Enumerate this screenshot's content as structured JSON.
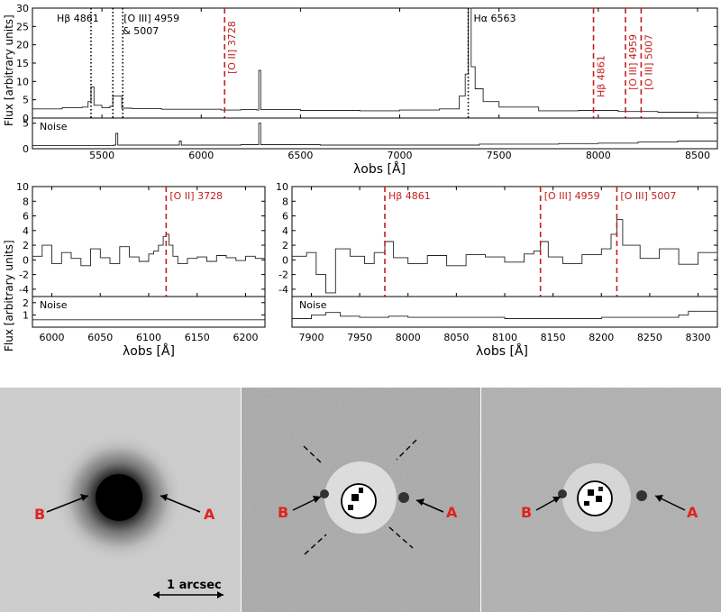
{
  "chart_data": [
    {
      "type": "line",
      "panel": "top-spectrum",
      "ylabel": "Flux [arbitrary units]",
      "xlabel": "λobs [Å]",
      "xlim": [
        5150,
        8600
      ],
      "ylim": [
        0,
        30
      ],
      "xticks": [
        5500,
        6000,
        6500,
        7000,
        7500,
        8000,
        8500
      ],
      "yticks": [
        0,
        5,
        10,
        15,
        20,
        25,
        30
      ],
      "series": [
        {
          "x": [
            5150,
            5300,
            5400,
            5430,
            5445,
            5460,
            5500,
            5540,
            5555,
            5600,
            5650,
            5800,
            6000,
            6100,
            6200,
            6280,
            6290,
            6300,
            6500,
            6800,
            7000,
            7200,
            7300,
            7330,
            7345,
            7360,
            7380,
            7420,
            7500,
            7700,
            7900,
            8100,
            8300,
            8500,
            8600
          ],
          "values": [
            2.5,
            2.8,
            3,
            4.5,
            8.5,
            3.5,
            2.8,
            3.2,
            6,
            2.7,
            2.6,
            2.4,
            2.4,
            2.2,
            2.3,
            2.2,
            13,
            2.3,
            2.1,
            2,
            2.2,
            2.5,
            6,
            12,
            30,
            14,
            8,
            4.5,
            3,
            2,
            2.1,
            1.8,
            1.6,
            1.5,
            1.6
          ]
        }
      ],
      "annotations": [
        {
          "label": "Hβ 4861",
          "x": 5445,
          "style": "dotted",
          "color": "#000000"
        },
        {
          "label": "[O III] 4959",
          "x": 5555,
          "style": "dotted",
          "color": "#000000"
        },
        {
          "label": "& 5007",
          "x": 5605,
          "style": "dotted",
          "color": "#000000"
        },
        {
          "label": "Hα 6563",
          "x": 7345,
          "style": "dotted",
          "color": "#000000"
        },
        {
          "label": "[O II] 3728",
          "x": 6118,
          "style": "dashed",
          "color": "#c0201f"
        },
        {
          "label": "Hβ 4861",
          "x": 7976,
          "style": "dashed",
          "color": "#c0201f"
        },
        {
          "label": "[O III] 4959",
          "x": 8137,
          "style": "dashed",
          "color": "#c0201f"
        },
        {
          "label": "[O III] 5007",
          "x": 8216,
          "style": "dashed",
          "color": "#c0201f"
        }
      ]
    },
    {
      "type": "line",
      "panel": "top-noise",
      "label": "Noise",
      "xlim": [
        5150,
        8600
      ],
      "ylim": [
        0,
        6
      ],
      "yticks": [
        0,
        5
      ],
      "series": [
        {
          "x": [
            5150,
            5500,
            5560,
            5570,
            5580,
            5800,
            5880,
            5890,
            5900,
            6200,
            6280,
            6290,
            6300,
            6600,
            7000,
            7400,
            7800,
            8000,
            8200,
            8400,
            8600
          ],
          "values": [
            0.6,
            0.6,
            0.7,
            3,
            0.7,
            0.7,
            0.7,
            1.5,
            0.7,
            0.8,
            0.8,
            5,
            0.8,
            0.7,
            0.7,
            0.9,
            1,
            1.1,
            1.3,
            1.5,
            1.8
          ]
        }
      ]
    },
    {
      "type": "line",
      "panel": "zoom-left",
      "ylabel": "Flux [arbitrary units]",
      "xlabel": "λobs [Å]",
      "xlim": [
        5980,
        6220
      ],
      "ylim": [
        -5,
        10
      ],
      "xticks": [
        6000,
        6050,
        6100,
        6150,
        6200
      ],
      "yticks": [
        -4,
        -2,
        0,
        2,
        4,
        6,
        8,
        10
      ],
      "series": [
        {
          "x": [
            5980,
            5990,
            6000,
            6010,
            6020,
            6030,
            6040,
            6050,
            6060,
            6070,
            6080,
            6090,
            6100,
            6105,
            6110,
            6115,
            6118,
            6121,
            6125,
            6130,
            6140,
            6150,
            6160,
            6170,
            6180,
            6190,
            6200,
            6210,
            6220
          ],
          "values": [
            0.5,
            2,
            -0.5,
            1,
            0.2,
            -0.8,
            1.5,
            0.3,
            -0.5,
            1.8,
            0.4,
            -0.2,
            0.8,
            1.2,
            2,
            3.2,
            3.5,
            2,
            0.5,
            -0.5,
            0.2,
            0.4,
            -0.2,
            0.6,
            0.3,
            -0.1,
            0.5,
            0.2,
            0.4
          ]
        }
      ],
      "annotations": [
        {
          "label": "[O II] 3728",
          "x": 6118,
          "style": "dashed",
          "color": "#c0201f"
        }
      ]
    },
    {
      "type": "line",
      "panel": "zoom-left-noise",
      "label": "Noise",
      "xlim": [
        5980,
        6220
      ],
      "ylim": [
        0,
        2.5
      ],
      "yticks": [
        1,
        2
      ],
      "series": [
        {
          "x": [
            5980,
            6220
          ],
          "values": [
            0.6,
            0.6
          ]
        }
      ]
    },
    {
      "type": "line",
      "panel": "zoom-right",
      "xlabel": "λobs [Å]",
      "xlim": [
        7880,
        8320
      ],
      "ylim": [
        -5,
        10
      ],
      "xticks": [
        7900,
        7950,
        8000,
        8050,
        8100,
        8150,
        8200,
        8250,
        8300
      ],
      "yticks": [
        -4,
        -2,
        0,
        2,
        4,
        6,
        8,
        10
      ],
      "series": [
        {
          "x": [
            7880,
            7895,
            7905,
            7915,
            7925,
            7940,
            7955,
            7965,
            7976,
            7985,
            8000,
            8020,
            8040,
            8060,
            8080,
            8100,
            8120,
            8130,
            8137,
            8145,
            8160,
            8180,
            8200,
            8210,
            8216,
            8222,
            8240,
            8260,
            8280,
            8300,
            8320
          ],
          "values": [
            0.5,
            1,
            -2,
            -4.5,
            1.5,
            0.5,
            -0.5,
            1,
            2.5,
            0.3,
            -0.5,
            0.6,
            -0.8,
            0.7,
            0.4,
            -0.3,
            0.8,
            1.2,
            2.5,
            0.4,
            -0.5,
            0.7,
            1.5,
            3.5,
            5.5,
            2,
            0.2,
            1.5,
            -0.6,
            1,
            0.5
          ]
        }
      ],
      "annotations": [
        {
          "label": "Hβ 4861",
          "x": 7976,
          "style": "dashed",
          "color": "#c0201f"
        },
        {
          "label": "[O III] 4959",
          "x": 8137,
          "style": "dashed",
          "color": "#c0201f"
        },
        {
          "label": "[O III] 5007",
          "x": 8216,
          "style": "dashed",
          "color": "#c0201f"
        }
      ]
    },
    {
      "type": "line",
      "panel": "zoom-right-noise",
      "label": "Noise",
      "xlim": [
        7880,
        8320
      ],
      "ylim": [
        0,
        2.5
      ],
      "series": [
        {
          "x": [
            7880,
            7900,
            7915,
            7930,
            7950,
            7980,
            8000,
            8050,
            8100,
            8150,
            8200,
            8260,
            8280,
            8290,
            8320
          ],
          "values": [
            0.7,
            1,
            1.2,
            0.9,
            0.8,
            0.9,
            0.8,
            0.8,
            0.7,
            0.7,
            0.8,
            0.8,
            1,
            1.3,
            1.2
          ]
        }
      ]
    }
  ],
  "images": {
    "panels": [
      {
        "name": "direct",
        "labels": [
          "B",
          "A"
        ],
        "scalebar": "1 arcsec"
      },
      {
        "name": "psf-subtracted",
        "labels": [
          "B",
          "A"
        ]
      },
      {
        "name": "psf-subtracted-2",
        "labels": [
          "B",
          "A"
        ]
      }
    ],
    "label_color": "#e0231f"
  }
}
